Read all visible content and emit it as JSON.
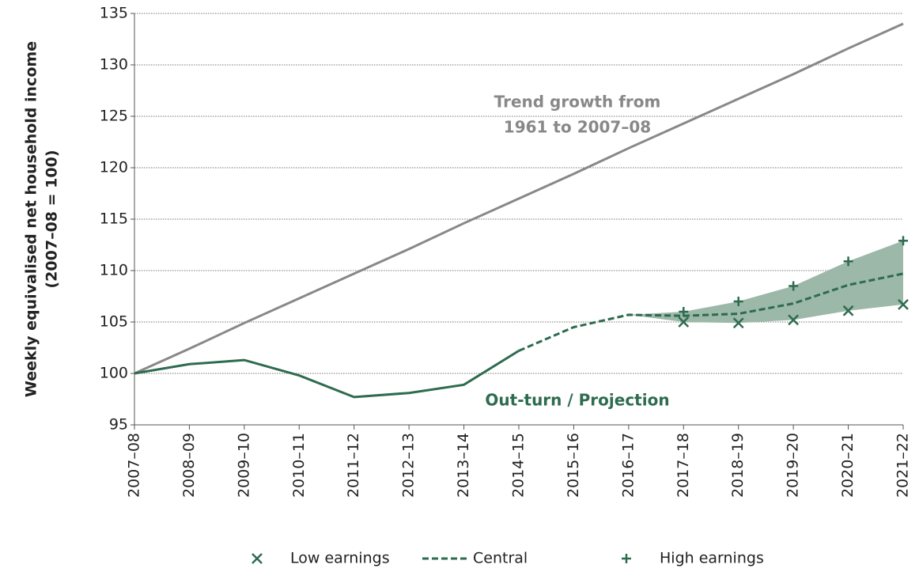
{
  "chart_data": {
    "type": "line",
    "y_label": [
      "Weekly equivalised net household  income",
      "(2007–08 = 100)"
    ],
    "categories": [
      "2007–08",
      "2008–09",
      "2009–10",
      "2010–11",
      "2011–12",
      "2012–13",
      "2013–14",
      "2014–15",
      "2015–16",
      "2016–17",
      "2017–18",
      "2018–19",
      "2019–20",
      "2020–21",
      "2021–22"
    ],
    "ylim": [
      95,
      135
    ],
    "yticks": [
      95,
      100,
      105,
      110,
      115,
      120,
      125,
      130,
      135
    ],
    "grid": true,
    "trend": {
      "color": "#888888",
      "values": [
        100,
        102.4,
        104.9,
        107.3,
        109.7,
        112.1,
        114.6,
        117.0,
        119.4,
        121.9,
        124.3,
        126.7,
        129.1,
        131.6,
        134.0
      ]
    },
    "outturn": {
      "color": "#2e6b4f",
      "values": [
        100,
        100.9,
        101.3,
        99.8,
        97.7,
        98.1,
        98.9,
        102.2,
        null,
        null,
        null,
        null,
        null,
        null,
        null
      ]
    },
    "band_color": "#9cb8a8",
    "series": [
      {
        "name": "Low earnings",
        "marker": "x",
        "color": "#2e6b4f",
        "values": [
          null,
          null,
          null,
          null,
          null,
          null,
          null,
          null,
          null,
          null,
          105.0,
          104.9,
          105.2,
          106.1,
          106.7
        ]
      },
      {
        "name": "Central",
        "marker": "dashed",
        "color": "#2e6b4f",
        "values": [
          null,
          null,
          null,
          null,
          null,
          null,
          null,
          102.2,
          104.5,
          105.7,
          105.6,
          105.8,
          106.8,
          108.6,
          109.7
        ]
      },
      {
        "name": "High earnings",
        "marker": "plus",
        "color": "#2e6b4f",
        "values": [
          null,
          null,
          null,
          null,
          null,
          null,
          null,
          null,
          null,
          null,
          106.0,
          107.0,
          108.5,
          110.9,
          112.9
        ]
      }
    ],
    "annotations": [
      {
        "text": [
          "Trend growth from",
          "1961 to 2007–08"
        ],
        "color": "#888888"
      },
      {
        "text": [
          "Out-turn / Projection"
        ],
        "color": "#2e6b4f"
      }
    ]
  }
}
